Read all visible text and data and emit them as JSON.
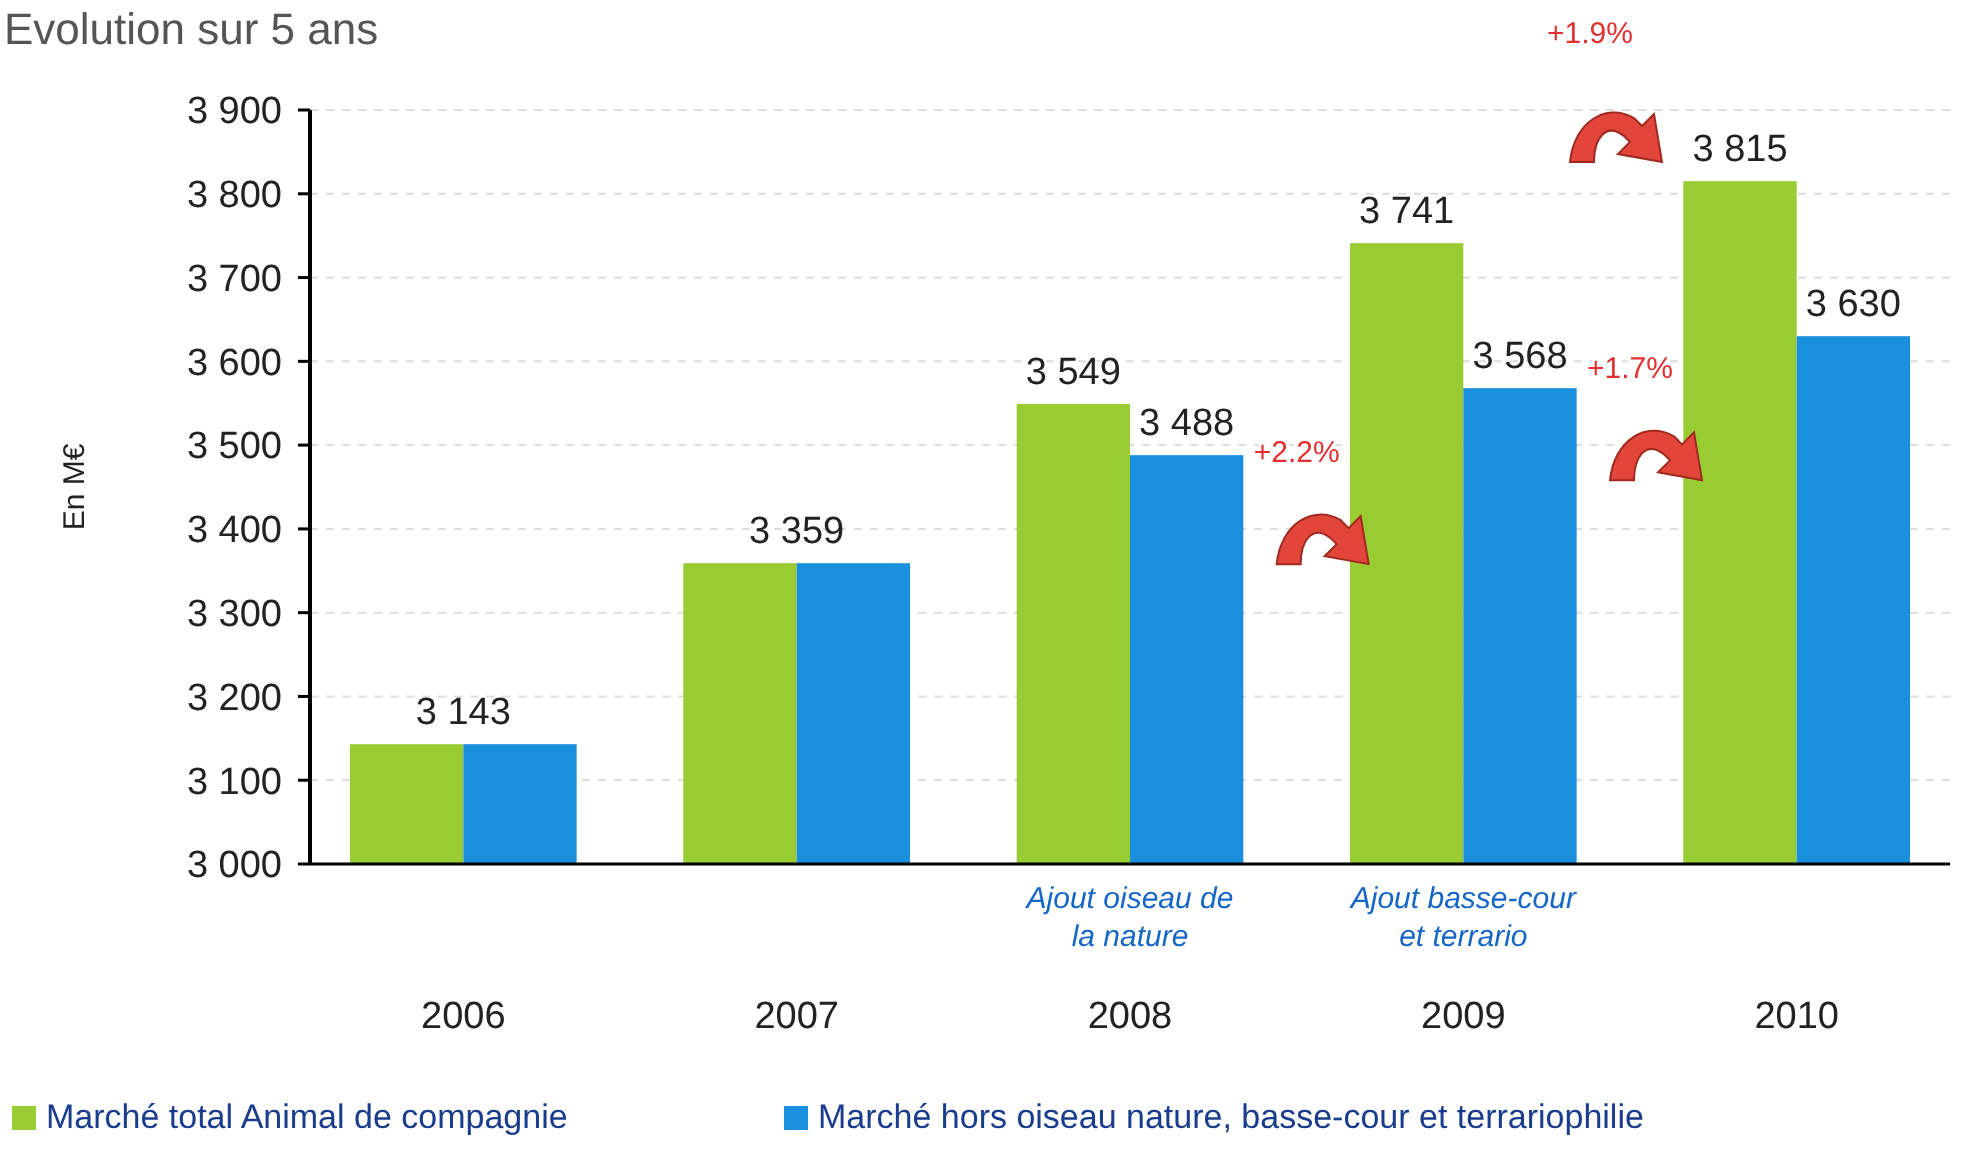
{
  "chart_data": {
    "type": "bar",
    "title": "Evolution sur 5  ans",
    "ylabel": "En M€",
    "categories": [
      "2006",
      "2007",
      "2008",
      "2009",
      "2010"
    ],
    "series": [
      {
        "name": "Marché total Animal de compagnie",
        "color": "#99cc33",
        "values": [
          3143,
          3359,
          3549,
          3741,
          3815
        ],
        "value_labels": [
          "3 143",
          "3 359",
          "3 549",
          "3 741",
          "3 815"
        ]
      },
      {
        "name": "Marché hors oiseau nature, basse-cour et terrariophilie",
        "color": "#1a8fdc",
        "values": [
          3143,
          3359,
          3488,
          3568,
          3630
        ],
        "value_labels": [
          null,
          null,
          "3 488",
          "3 568",
          "3 630"
        ]
      }
    ],
    "ylim": [
      3000,
      3900
    ],
    "yticks": [
      {
        "value": 3000,
        "label": "3 000"
      },
      {
        "value": 3100,
        "label": "3 100"
      },
      {
        "value": 3200,
        "label": "3 200"
      },
      {
        "value": 3300,
        "label": "3 300"
      },
      {
        "value": 3400,
        "label": "3 400"
      },
      {
        "value": 3500,
        "label": "3 500"
      },
      {
        "value": 3600,
        "label": "3 600"
      },
      {
        "value": 3700,
        "label": "3 700"
      },
      {
        "value": 3800,
        "label": "3 800"
      },
      {
        "value": 3900,
        "label": "3 900"
      }
    ],
    "grid": "y",
    "legend": "bottom",
    "annotations": [
      "+2.2%",
      "+1.7%",
      "+1.9%",
      "Ajout oiseau de la nature",
      "Ajout basse-cour et  terrario"
    ]
  }
}
